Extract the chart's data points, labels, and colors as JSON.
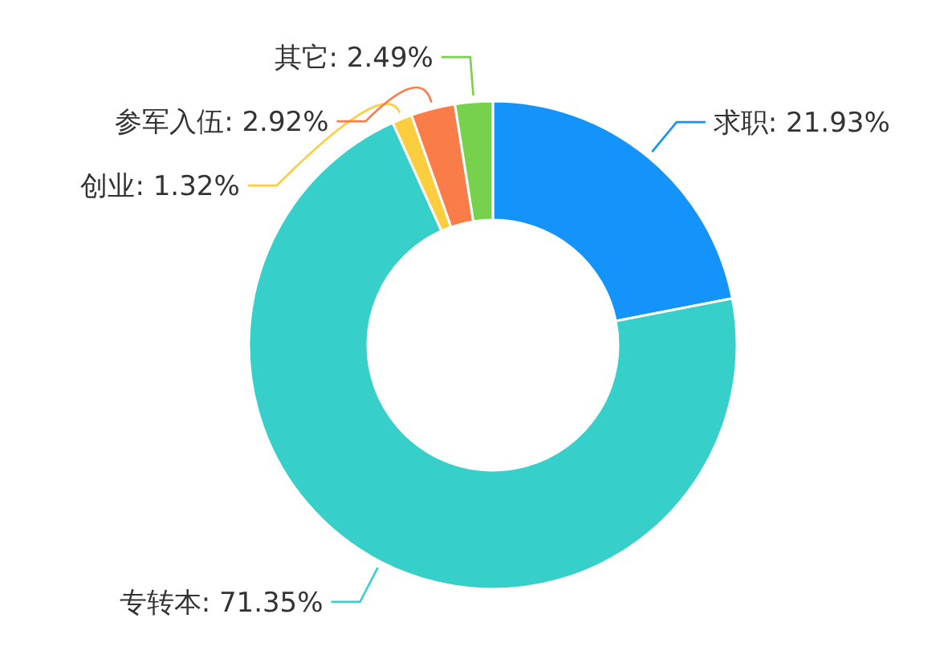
{
  "chart_data": {
    "type": "donut",
    "categories": [
      "求职",
      "专转本",
      "创业",
      "参军入伍",
      "其它"
    ],
    "values": [
      21.93,
      71.35,
      1.32,
      2.92,
      2.49
    ],
    "value_labels": [
      "21.93%",
      "71.35%",
      "1.32%",
      "2.92%",
      "2.49%"
    ],
    "colors": [
      "#1493fb",
      "#36cfc9",
      "#fbcd3f",
      "#fa7c48",
      "#78d14c"
    ]
  }
}
